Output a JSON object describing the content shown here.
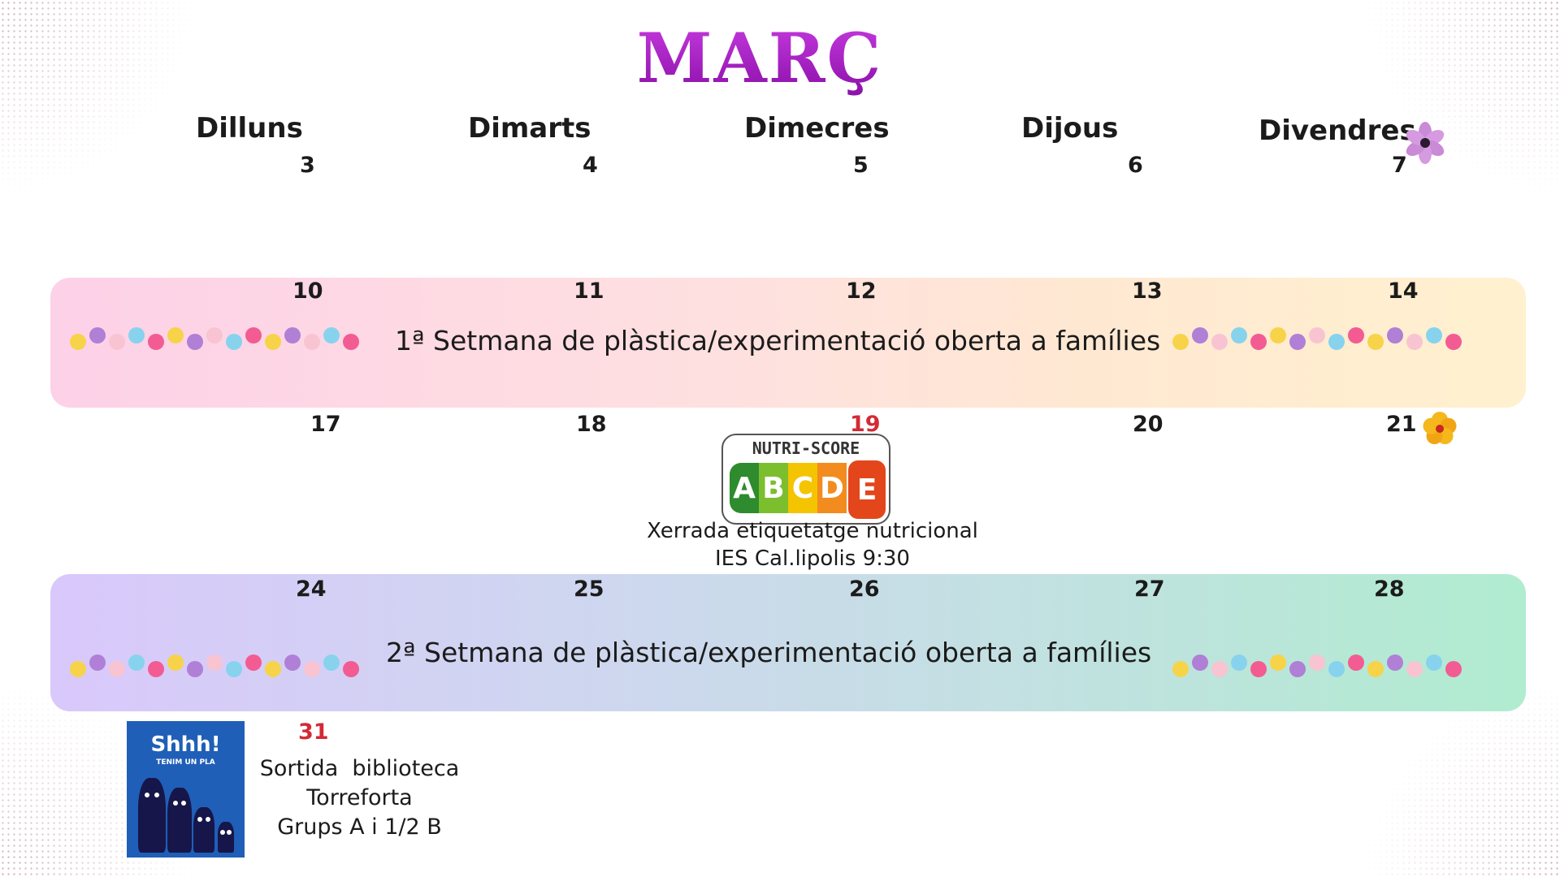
{
  "title": "MARÇ",
  "weekdays": [
    "Dilluns",
    "Dimarts",
    "Dimecres",
    "Dijous",
    "Divendres"
  ],
  "weeks": [
    [
      "3",
      "4",
      "5",
      "6",
      "7"
    ],
    [
      "10",
      "11",
      "12",
      "13",
      "14"
    ],
    [
      "17",
      "18",
      "19",
      "20",
      "21"
    ],
    [
      "24",
      "25",
      "26",
      "27",
      "28"
    ],
    [
      "31"
    ]
  ],
  "highlight_color": "#d32a36",
  "band1_text": "1ª Setmana de plàstica/experimentació oberta a famílies",
  "band2_text": "2ª Setmana de plàstica/experimentació oberta a famílies",
  "nutri": {
    "label": "NUTRI-SCORE",
    "letters": [
      "A",
      "B",
      "C",
      "D",
      "E"
    ],
    "colors": [
      "#2e8b2e",
      "#7cbf2e",
      "#f5c400",
      "#f28c1e",
      "#e3461b"
    ]
  },
  "talk": {
    "line1": "Xerrada etiquetatge nutricional",
    "line2": "IES Cal.lipolis 9:30"
  },
  "book": {
    "title": "Shhh!",
    "subtitle": "TENIM UN PLA"
  },
  "outing": {
    "line1": "Sortida  biblioteca",
    "line2": "Torreforta",
    "line3": "Grups A i 1/2 B"
  },
  "dot_colors": [
    "#f7d34a",
    "#b07fd6",
    "#f8c4d2",
    "#87d3ee",
    "#f25c93"
  ],
  "icons": [
    "purple-flower-icon",
    "yellow-flower-icon"
  ]
}
